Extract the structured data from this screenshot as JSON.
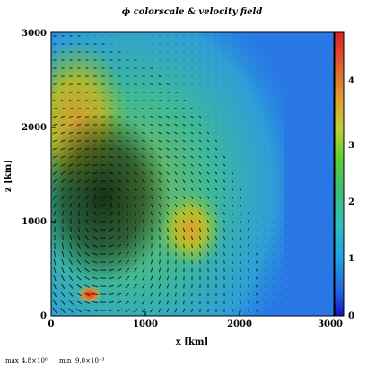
{
  "chart_data": {
    "type": "heatmap",
    "title": "ϕ colorscale & velocity field",
    "xlabel": "x [km]",
    "ylabel": "z [km]",
    "xlim": [
      0,
      3000
    ],
    "ylim": [
      0,
      3000
    ],
    "x_ticks": [
      "0",
      "1000",
      "2000",
      "3000"
    ],
    "y_ticks": [
      "0",
      "1000",
      "2000",
      "3000"
    ],
    "colorbar": {
      "range": [
        0,
        5
      ],
      "ticks": [
        "0",
        "1",
        "2",
        "3",
        "4"
      ],
      "colors": [
        "#1010c0",
        "#2060e0",
        "#20a0e0",
        "#30c0c0",
        "#40c070",
        "#60d030",
        "#c0d030",
        "#e0a030",
        "#e06030",
        "#e02020"
      ]
    },
    "features": [
      {
        "label": "high ϕ core",
        "x": 420,
        "z": 230,
        "value": 4.8
      },
      {
        "label": "orange patch",
        "x": 1480,
        "z": 930,
        "value": 3.4
      },
      {
        "label": "upper-left band",
        "x": 200,
        "z": 2100,
        "value": 3.1
      }
    ],
    "vector_field": "velocity arrows (dense black), swirling around x≈500 km, z≈1300 km"
  },
  "footer": {
    "max_label": "max",
    "max_value": "4.8×10⁶",
    "min_label": "min",
    "min_value": "9.0×10⁻³"
  }
}
